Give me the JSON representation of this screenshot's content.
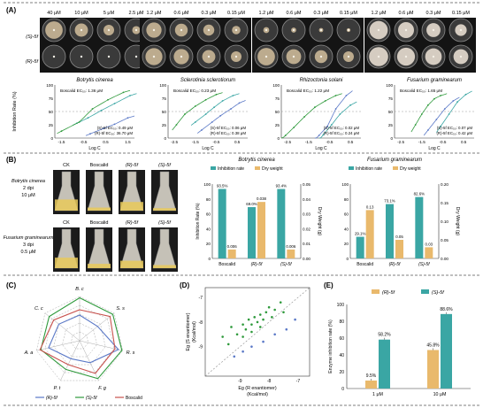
{
  "colors": {
    "blue": "#5b79c7",
    "green": "#2f9a3c",
    "teal": "#3aa6a4",
    "orange": "#e9b96c",
    "red": "#c8524e",
    "panelA_bg": "#141414"
  },
  "panel_labels": [
    "(A)",
    "(B)",
    "(C)",
    "(D)",
    "(E)"
  ],
  "panelA": {
    "group1": {
      "concentrations": [
        "40 μM",
        "10 μM",
        "5 μM",
        "2.5 μM"
      ],
      "title": "Botrytis cinerea",
      "boscalid": "Boscalid EC₅₀: 1.36 μM",
      "legend": [
        "(S)-5f EC₅₀: 0.49 μM",
        "(R)-5f EC₅₀: 36.70 μM"
      ]
    },
    "group2": {
      "concentrations": [
        "1.2 μM",
        "0.6 μM",
        "0.3 μM",
        "0.15 μM"
      ],
      "title": "Sclerotinia sclerotiorum",
      "boscalid": "Boscalid EC₅₀: 0.23 μM",
      "legend": [
        "(S)-5f EC₅₀: 0.06 μM",
        "(R)-5f EC₅₀: 0.38 μM"
      ]
    },
    "group3": {
      "concentrations": [
        "1.2 μM",
        "0.6 μM",
        "0.3 μM",
        "0.15 μM"
      ],
      "title": "Rhizoctonia solani",
      "boscalid": "Boscalid EC₅₀: 1.22 μM",
      "legend": [
        "(S)-5f EC₅₀: 0.02 μM",
        "(R)-5f EC₅₀: 0.24 μM"
      ]
    },
    "group4": {
      "concentrations": [
        "1.2 μM",
        "0.6 μM",
        "0.3 μM",
        "0.15 μM"
      ],
      "title": "Fusarium graminearum",
      "boscalid": "Boscalid EC₅₀: 1.65 μM",
      "legend": [
        "(S)-5f EC₅₀: 0.07 μM",
        "(R)-5f EC₅₀: 0.42 μM"
      ]
    },
    "row_labels": [
      "(S)-5f",
      "(R)-5f"
    ],
    "ylabel": "Inhibition Rate (%)",
    "xlabel": "Log C",
    "yticks": [
      "100",
      "75",
      "50",
      "25",
      "0"
    ],
    "xticks_1": [
      "-1.5",
      "-0.5",
      "0.5",
      "1.5"
    ],
    "xticks_2": [
      "-2.5",
      "-1.5",
      "-0.5",
      "0.5"
    ],
    "xticks_3": [
      "-2.5",
      "-1.5",
      "-0.5",
      "0.5"
    ],
    "xticks_4": [
      "-2.5",
      "-1.5",
      "-0.5",
      "0.5"
    ]
  },
  "panelB": {
    "photo_titles_1": [
      "CK",
      "Boscalid",
      "(R)-5f",
      "(S)-5f"
    ],
    "photo_titles_2": [
      "CK",
      "Boscalid",
      "(R)-5f",
      "(S)-5f"
    ],
    "side1": [
      "Botrytis cinerea",
      "2 dpi",
      "10 μM"
    ],
    "side2": [
      "Fusarium graminearum",
      "3 dpi",
      "0.5 μM"
    ],
    "legend": [
      "Inhibition rate",
      "Dry weight"
    ]
  },
  "panelC": {
    "axes": [
      "B. c",
      "S. s",
      "R. s",
      "F. g",
      "P. t",
      "A. a",
      "C. c"
    ],
    "legend": [
      "(R)-5f",
      "(S)-5f",
      "Boscalid"
    ]
  },
  "panelE": {
    "legend": [
      "(R)-5f",
      "(S)-5f"
    ]
  },
  "chart_data": [
    {
      "type": "line",
      "title": "Botrytis cinerea",
      "xlabel": "Log C",
      "ylabel": "Inhibition Rate (%)",
      "xlim": [
        -1.8,
        1.8
      ],
      "ylim": [
        0,
        100
      ],
      "series": [
        {
          "name": "Boscalid",
          "x": [
            -0.8,
            -0.3,
            0.3,
            0.9,
            1.6
          ],
          "y": [
            28,
            38,
            52,
            65,
            80
          ]
        },
        {
          "name": "(S)-5f",
          "x": [
            -1.5,
            -0.7,
            -0.1,
            0.6,
            1.3
          ],
          "y": [
            13,
            30,
            55,
            72,
            86
          ]
        },
        {
          "name": "(R)-5f",
          "x": [
            -0.2,
            0.4,
            0.9,
            1.5
          ],
          "y": [
            8,
            18,
            26,
            38
          ]
        }
      ]
    },
    {
      "type": "line",
      "title": "Sclerotinia sclerotiorum",
      "xlabel": "Log C",
      "ylabel": "Inhibition Rate (%)",
      "xlim": [
        -2.8,
        1.0
      ],
      "ylim": [
        0,
        100
      ],
      "series": [
        {
          "name": "Boscalid",
          "x": [
            -1.5,
            -1.0,
            -0.6,
            -0.2,
            0.3
          ],
          "y": [
            30,
            45,
            58,
            70,
            80
          ]
        },
        {
          "name": "(S)-5f",
          "x": [
            -2.4,
            -2.0,
            -1.5,
            -1.0,
            -0.5
          ],
          "y": [
            25,
            45,
            60,
            72,
            82
          ]
        },
        {
          "name": "(R)-5f",
          "x": [
            -1.2,
            -0.7,
            -0.3,
            0.2,
            0.6
          ],
          "y": [
            15,
            30,
            42,
            55,
            66
          ]
        }
      ]
    },
    {
      "type": "line",
      "title": "Rhizoctonia solani",
      "xlabel": "Log C",
      "ylabel": "Inhibition Rate (%)",
      "xlim": [
        -2.8,
        1.0
      ],
      "ylim": [
        0,
        100
      ],
      "series": [
        {
          "name": "Boscalid",
          "x": [
            -0.8,
            -0.4,
            0.0,
            0.5
          ],
          "y": [
            6,
            25,
            45,
            62
          ]
        },
        {
          "name": "(S)-5f",
          "x": [
            -2.6,
            -2.2,
            -1.7,
            -1.2,
            -0.7,
            -0.2
          ],
          "y": [
            5,
            20,
            40,
            58,
            70,
            80
          ]
        },
        {
          "name": "(R)-5f",
          "x": [
            -1.0,
            -0.6,
            -0.2,
            0.3
          ],
          "y": [
            5,
            22,
            55,
            80
          ]
        }
      ]
    },
    {
      "type": "line",
      "title": "Fusarium graminearum",
      "xlabel": "Log C",
      "ylabel": "Inhibition Rate (%)",
      "xlim": [
        -2.8,
        1.0
      ],
      "ylim": [
        0,
        100
      ],
      "series": [
        {
          "name": "Boscalid",
          "x": [
            -0.6,
            -0.2,
            0.2,
            0.6
          ],
          "y": [
            22,
            45,
            68,
            82
          ]
        },
        {
          "name": "(S)-5f",
          "x": [
            -1.8,
            -1.5,
            -1.2,
            -0.9,
            -0.6
          ],
          "y": [
            25,
            45,
            62,
            74,
            80
          ]
        },
        {
          "name": "(R)-5f",
          "x": [
            -1.2,
            -0.8,
            -0.4,
            0.0
          ],
          "y": [
            15,
            35,
            55,
            70
          ]
        }
      ]
    },
    {
      "type": "bar",
      "title": "Botrytis cinerea",
      "categories": [
        "Boscalid",
        "(R)-5f",
        "(S)-5f"
      ],
      "ylabel": "Inhibition Rate (%)",
      "y2label": "Dry Weight (g)",
      "ylim": [
        0,
        100
      ],
      "y2lim": [
        0,
        0.05
      ],
      "yticks": [
        "0",
        "20",
        "40",
        "60",
        "80",
        "100"
      ],
      "y2ticks": [
        "0.00",
        "0.01",
        "0.02",
        "0.03",
        "0.04",
        "0.05"
      ],
      "series": [
        {
          "name": "Inhibition rate",
          "values": [
            93.5,
            69.0,
            93.4
          ],
          "labels": [
            "93.5%",
            "69.0%",
            "93.4%"
          ]
        },
        {
          "name": "Dry weight",
          "values": [
            0.006,
            0.038,
            0.006
          ],
          "labels": [
            "0.006",
            "0.038",
            "0.006"
          ]
        }
      ]
    },
    {
      "type": "bar",
      "title": "Fusarium graminearum",
      "categories": [
        "Boscalid",
        "(R)-5f",
        "(S)-5f"
      ],
      "ylabel": "",
      "y2label": "Dry Weight (g)",
      "ylim": [
        0,
        100
      ],
      "y2lim": [
        0,
        0.2
      ],
      "yticks": [
        "0",
        "20",
        "40",
        "60",
        "80",
        "100"
      ],
      "y2ticks": [
        "0.00",
        "0.05",
        "0.10",
        "0.15",
        "0.20"
      ],
      "series": [
        {
          "name": "Inhibition rate",
          "values": [
            29.1,
            73.1,
            82.6
          ],
          "labels": [
            "29.1%",
            "73.1%",
            "82.6%"
          ]
        },
        {
          "name": "Dry weight",
          "values": [
            0.13,
            0.05,
            0.03
          ],
          "labels": [
            "0.13",
            "0.05",
            "0.03"
          ]
        }
      ]
    },
    {
      "type": "radar",
      "axes": [
        "B. c",
        "S. s",
        "R. s",
        "F. g",
        "P. t",
        "A. a",
        "C. c"
      ],
      "series": [
        {
          "name": "(R)-5f",
          "values": [
            0.58,
            0.52,
            0.9,
            0.55,
            0.45,
            0.72,
            0.6
          ]
        },
        {
          "name": "(S)-5f",
          "values": [
            0.97,
            0.96,
            0.98,
            0.95,
            0.72,
            0.9,
            0.88
          ]
        },
        {
          "name": "Boscalid",
          "values": [
            0.7,
            0.88,
            0.82,
            0.82,
            0.6,
            0.92,
            0.75
          ]
        }
      ]
    },
    {
      "type": "scatter",
      "xlabel": "Eg (R enantiomer)",
      "xlabel2": "(Kcal/mol)",
      "ylabel": "Eg (S enantiomer)",
      "ylabel2": "(Kcal/mol)",
      "xlim": [
        -10.2,
        -6.6
      ],
      "ylim": [
        -10.2,
        -6.6
      ],
      "xticks": [
        "-9",
        "-8",
        "-7"
      ],
      "yticks": [
        "-7",
        "-8",
        "-9"
      ],
      "series": [
        {
          "name": "green",
          "points": [
            [
              -9.6,
              -8.6
            ],
            [
              -9.3,
              -8.2
            ],
            [
              -9.1,
              -8.5
            ],
            [
              -8.9,
              -8.1
            ],
            [
              -8.8,
              -8.3
            ],
            [
              -8.7,
              -7.9
            ],
            [
              -8.6,
              -8.1
            ],
            [
              -8.5,
              -7.8
            ],
            [
              -8.4,
              -8.0
            ],
            [
              -8.3,
              -7.7
            ],
            [
              -8.2,
              -7.9
            ],
            [
              -8.1,
              -7.6
            ],
            [
              -8.0,
              -7.4
            ],
            [
              -7.9,
              -7.8
            ],
            [
              -7.8,
              -7.5
            ],
            [
              -7.6,
              -7.2
            ],
            [
              -7.5,
              -7.6
            ],
            [
              -8.6,
              -8.4
            ],
            [
              -8.9,
              -8.6
            ],
            [
              -8.3,
              -8.2
            ],
            [
              -9.4,
              -8.9
            ]
          ]
        },
        {
          "name": "blue",
          "points": [
            [
              -9.2,
              -9.4
            ],
            [
              -8.9,
              -9.2
            ],
            [
              -8.6,
              -9.0
            ],
            [
              -8.2,
              -8.8
            ],
            [
              -7.8,
              -8.5
            ],
            [
              -7.4,
              -8.3
            ],
            [
              -7.1,
              -7.9
            ]
          ]
        }
      ]
    },
    {
      "type": "bar",
      "categories": [
        "1 μM",
        "10 μM"
      ],
      "ylabel": "Enzyme inhibition rate (%)",
      "ylim": [
        0,
        100
      ],
      "yticks": [
        "0",
        "20",
        "40",
        "60",
        "80",
        "100"
      ],
      "series": [
        {
          "name": "(R)-5f",
          "values": [
            9.5,
            45.8
          ],
          "labels": [
            "9.5%",
            "45.8%"
          ]
        },
        {
          "name": "(S)-5f",
          "values": [
            58.2,
            88.6
          ],
          "labels": [
            "58.2%",
            "88.6%"
          ]
        }
      ]
    }
  ]
}
